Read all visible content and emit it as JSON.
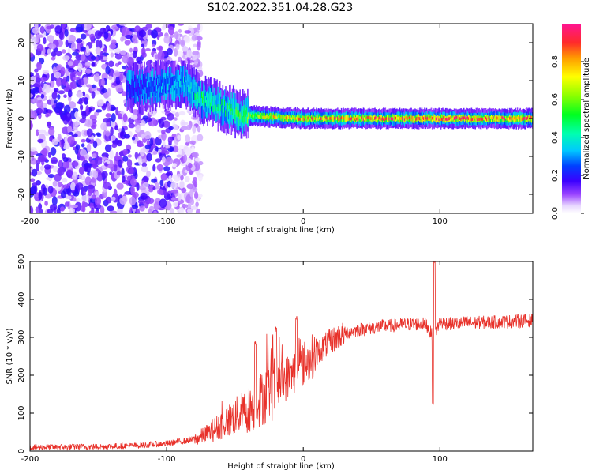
{
  "figure": {
    "title": "S102.2022.351.04.28.G23"
  },
  "chart_data": [
    {
      "type": "heatmap",
      "title": "S102.2022.351.04.28.G23",
      "xlabel": "Height of straight line (km)",
      "ylabel": "Frequency (Hz)",
      "xlim": [
        -200,
        168
      ],
      "ylim": [
        -25,
        25
      ],
      "x_ticks": [
        -200,
        -100,
        0,
        100
      ],
      "x_tick_labels": [
        "-200",
        "-100",
        "0",
        "100"
      ],
      "y_ticks": [
        -20,
        -10,
        0,
        10,
        20
      ],
      "y_tick_labels": [
        "-20",
        "-10",
        "0",
        "10",
        "20"
      ],
      "grid": false,
      "colorbar": {
        "label": "Normalized spectral amplitude",
        "range": [
          0,
          1
        ],
        "ticks": [
          0.0,
          0.2,
          0.4,
          0.6,
          0.8
        ],
        "tick_labels": [
          "0.0",
          "0.2",
          "0.4",
          "0.6",
          "0.8"
        ],
        "colormap": "hsv"
      },
      "features": {
        "noise_region_x": [
          -200,
          -85
        ],
        "ridge": [
          {
            "x": -130,
            "freq": 8,
            "amp": 0.22
          },
          {
            "x": -85,
            "freq": 9,
            "amp": 0.35
          },
          {
            "x": -75,
            "freq": 5,
            "amp": 0.45
          },
          {
            "x": -60,
            "freq": 3,
            "amp": 0.45
          },
          {
            "x": -45,
            "freq": 1,
            "amp": 0.5
          },
          {
            "x": -30,
            "freq": 0.5,
            "amp": 0.65
          },
          {
            "x": 0,
            "freq": 0,
            "amp": 0.75
          },
          {
            "x": 50,
            "freq": 0,
            "amp": 0.8
          },
          {
            "x": 100,
            "freq": 0,
            "amp": 0.85
          },
          {
            "x": 168,
            "freq": 0,
            "amp": 0.8
          }
        ]
      }
    },
    {
      "type": "line",
      "xlabel": "Height of straight line (km)",
      "ylabel": "SNR (10 * v/v)",
      "xlim": [
        -200,
        168
      ],
      "ylim": [
        0,
        500
      ],
      "x_ticks": [
        -200,
        -100,
        0,
        100
      ],
      "x_tick_labels": [
        "-200",
        "-100",
        "0",
        "100"
      ],
      "y_ticks": [
        0,
        100,
        200,
        300,
        400,
        500
      ],
      "y_tick_labels": [
        "0",
        "100",
        "200",
        "300",
        "400",
        "500"
      ],
      "grid": false,
      "series": [
        {
          "color": "#e8312a",
          "x": [
            -200,
            -150,
            -120,
            -100,
            -90,
            -80,
            -70,
            -60,
            -50,
            -40,
            -30,
            -20,
            -10,
            0,
            10,
            20,
            30,
            40,
            50,
            60,
            70,
            80,
            90,
            95,
            100,
            110,
            120,
            140,
            168
          ],
          "values": [
            10,
            12,
            15,
            20,
            25,
            30,
            45,
            70,
            90,
            110,
            140,
            170,
            200,
            230,
            260,
            290,
            310,
            320,
            325,
            330,
            332,
            335,
            335,
            300,
            340,
            335,
            338,
            340,
            345
          ]
        }
      ],
      "spikes": [
        {
          "x": -35,
          "max": 290
        },
        {
          "x": -20,
          "max": 330
        },
        {
          "x": -5,
          "max": 360
        },
        {
          "x": 95,
          "min": 120
        },
        {
          "x": 96,
          "max": 510
        }
      ]
    }
  ]
}
